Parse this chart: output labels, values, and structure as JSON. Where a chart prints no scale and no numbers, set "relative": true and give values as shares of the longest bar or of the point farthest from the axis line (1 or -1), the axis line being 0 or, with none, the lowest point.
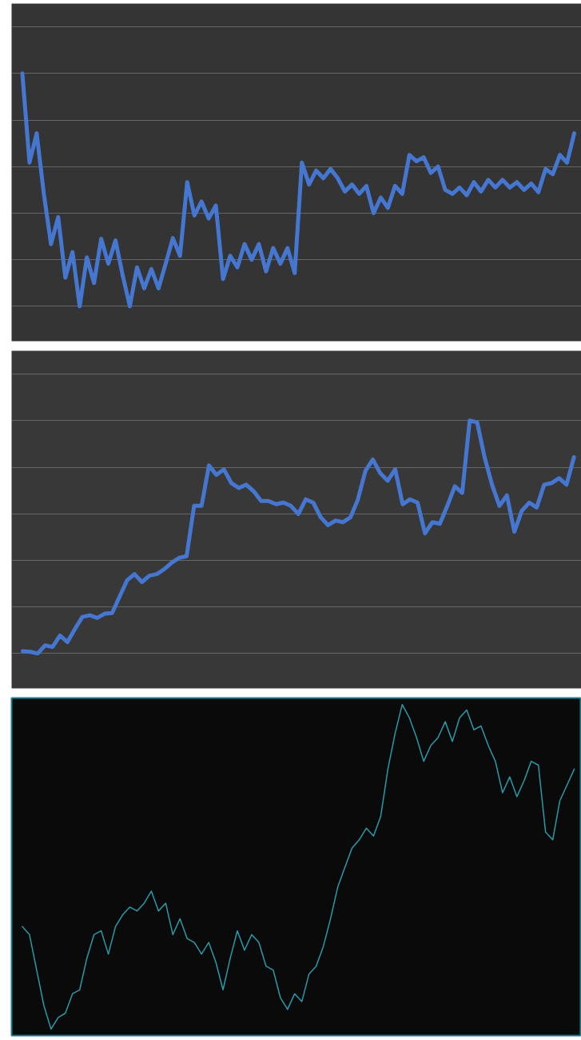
{
  "chart_data": [
    {
      "type": "line",
      "relative": true,
      "grid": "y",
      "categories": [
        null,
        null,
        null,
        null,
        null,
        null,
        null,
        null,
        null,
        null,
        null,
        null,
        null,
        null,
        null,
        null,
        null,
        null,
        null,
        null,
        null,
        null,
        null,
        null,
        null,
        null,
        null,
        null,
        null,
        null,
        null,
        null,
        null,
        null,
        null,
        null,
        null,
        null,
        null,
        null,
        null,
        null,
        null,
        null,
        null,
        null,
        null,
        null,
        null,
        null,
        null,
        null,
        null,
        null,
        null,
        null,
        null,
        null,
        null,
        null,
        null,
        null,
        null,
        null,
        null,
        null,
        null,
        null,
        null,
        null,
        null,
        null,
        null,
        null,
        null,
        null,
        null,
        null
      ],
      "series": [
        {
          "color": "#4677d0",
          "values": [
            1.0,
            0.617,
            0.743,
            0.483,
            0.267,
            0.383,
            0.123,
            0.233,
            0,
            0.21,
            0.1,
            0.29,
            0.183,
            0.283,
            0.133,
            0,
            0.167,
            0.077,
            0.16,
            0.077,
            0.183,
            0.293,
            0.217,
            0.533,
            0.39,
            0.45,
            0.377,
            0.433,
            0.117,
            0.217,
            0.167,
            0.267,
            0.2,
            0.267,
            0.15,
            0.25,
            0.183,
            0.25,
            0.143,
            0.617,
            0.523,
            0.583,
            0.55,
            0.59,
            0.55,
            0.493,
            0.523,
            0.483,
            0.517,
            0.4,
            0.467,
            0.423,
            0.517,
            0.483,
            0.65,
            0.623,
            0.64,
            0.573,
            0.6,
            0.5,
            0.483,
            0.51,
            0.477,
            0.533,
            0.493,
            0.543,
            0.51,
            0.543,
            0.51,
            0.533,
            0.5,
            0.527,
            0.49,
            0.59,
            0.567,
            0.65,
            0.617,
            0.743
          ]
        }
      ]
    },
    {
      "type": "line",
      "relative": true,
      "grid": "y",
      "categories": [
        null,
        null,
        null,
        null,
        null,
        null,
        null,
        null,
        null,
        null,
        null,
        null,
        null,
        null,
        null,
        null,
        null,
        null,
        null,
        null,
        null,
        null,
        null,
        null,
        null,
        null,
        null,
        null,
        null,
        null,
        null,
        null,
        null,
        null,
        null,
        null,
        null,
        null,
        null,
        null,
        null,
        null,
        null,
        null,
        null,
        null,
        null,
        null,
        null,
        null,
        null,
        null,
        null,
        null,
        null,
        null,
        null,
        null,
        null,
        null,
        null,
        null,
        null,
        null,
        null,
        null,
        null,
        null,
        null,
        null,
        null,
        null,
        null,
        null,
        null
      ],
      "series": [
        {
          "color": "#4677d0",
          "values": [
            0.01,
            0.007,
            0,
            0.035,
            0.028,
            0.077,
            0.049,
            0.105,
            0.157,
            0.164,
            0.153,
            0.171,
            0.174,
            0.244,
            0.314,
            0.341,
            0.307,
            0.334,
            0.341,
            0.362,
            0.39,
            0.411,
            0.418,
            0.634,
            0.634,
            0.808,
            0.767,
            0.791,
            0.732,
            0.711,
            0.725,
            0.697,
            0.655,
            0.655,
            0.641,
            0.648,
            0.634,
            0.599,
            0.662,
            0.648,
            0.585,
            0.551,
            0.571,
            0.564,
            0.585,
            0.662,
            0.784,
            0.833,
            0.774,
            0.742,
            0.791,
            0.641,
            0.662,
            0.648,
            0.516,
            0.564,
            0.557,
            0.634,
            0.718,
            0.69,
            1.0,
            0.993,
            0.843,
            0.725,
            0.634,
            0.679,
            0.523,
            0.613,
            0.648,
            0.627,
            0.725,
            0.732,
            0.753,
            0.725,
            0.843
          ]
        }
      ]
    },
    {
      "type": "line",
      "relative": true,
      "categories": [
        null,
        null,
        null,
        null,
        null,
        null,
        null,
        null,
        null,
        null,
        null,
        null,
        null,
        null,
        null,
        null,
        null,
        null,
        null,
        null,
        null,
        null,
        null,
        null,
        null,
        null,
        null,
        null,
        null,
        null,
        null,
        null,
        null,
        null,
        null,
        null,
        null,
        null,
        null,
        null,
        null,
        null,
        null,
        null,
        null,
        null,
        null,
        null,
        null,
        null,
        null,
        null,
        null,
        null,
        null,
        null,
        null,
        null,
        null,
        null,
        null,
        null,
        null,
        null,
        null,
        null,
        null,
        null,
        null,
        null,
        null,
        null,
        null,
        null,
        null,
        null,
        null,
        null
      ],
      "series": [
        {
          "color": "#2a9aaa",
          "values": [
            0.316,
            0.291,
            0.182,
            0.073,
            0,
            0.036,
            0.049,
            0.109,
            0.121,
            0.218,
            0.291,
            0.303,
            0.231,
            0.316,
            0.352,
            0.376,
            0.364,
            0.388,
            0.425,
            0.364,
            0.388,
            0.291,
            0.34,
            0.279,
            0.267,
            0.231,
            0.267,
            0.206,
            0.121,
            0.218,
            0.303,
            0.243,
            0.291,
            0.267,
            0.194,
            0.182,
            0.097,
            0.061,
            0.109,
            0.085,
            0.17,
            0.194,
            0.255,
            0.34,
            0.437,
            0.498,
            0.558,
            0.583,
            0.619,
            0.595,
            0.655,
            0.801,
            0.91,
            1.0,
            0.959,
            0.898,
            0.825,
            0.874,
            0.898,
            0.947,
            0.886,
            0.959,
            0.983,
            0.922,
            0.934,
            0.874,
            0.825,
            0.728,
            0.777,
            0.716,
            0.765,
            0.825,
            0.813,
            0.607,
            0.583,
            0.704,
            0.752,
            0.801
          ]
        }
      ]
    }
  ]
}
